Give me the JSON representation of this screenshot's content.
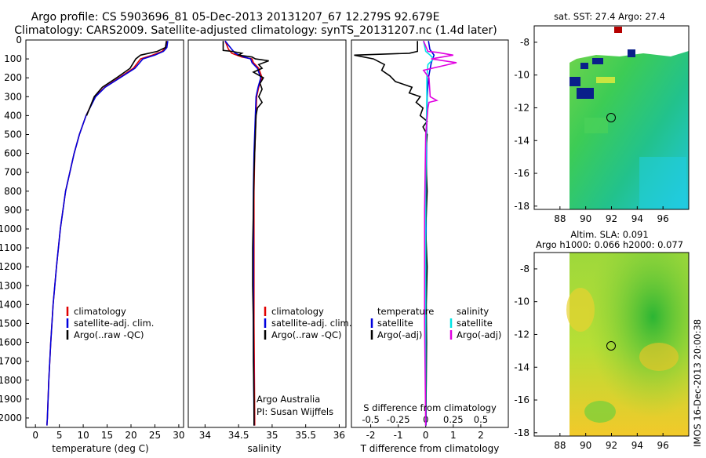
{
  "header": {
    "title_line1": "Argo profile: CS 5903696_81 05-Dec-2013 20131207_67 12.279S 92.679E",
    "title_line2": "Climatology: CARS2009. Satellite-adjusted climatology: synTS_20131207.nc (1.4d later)"
  },
  "colors": {
    "climatology": "#e00000",
    "satellite": "#0000dd",
    "argo": "#000000",
    "sat_salinity": "#00e5e5",
    "argo_salinity": "#e000e0"
  },
  "depth_axis": {
    "ylim": [
      2050,
      0
    ],
    "ticks": [
      "0",
      "100",
      "200",
      "300",
      "400",
      "500",
      "600",
      "700",
      "800",
      "900",
      "1000",
      "1100",
      "1200",
      "1300",
      "1400",
      "1500",
      "1600",
      "1700",
      "1800",
      "1900",
      "2000"
    ]
  },
  "chart_data": [
    {
      "type": "line",
      "id": "temperature",
      "xlabel": "temperature (deg C)",
      "xlim": [
        -2,
        31
      ],
      "xticks": [
        "0",
        "5",
        "10",
        "15",
        "20",
        "25",
        "30"
      ],
      "legend": [
        "climatology",
        "satellite-adj. clim.",
        "Argo(..raw -QC)"
      ],
      "series": [
        {
          "name": "climatology",
          "depth": [
            5,
            40,
            60,
            80,
            100,
            150,
            200,
            250,
            300,
            400,
            500,
            600,
            800,
            1000,
            1200,
            1400,
            1600,
            1800,
            2000,
            2040
          ],
          "values": [
            27.5,
            27.3,
            26.5,
            24.5,
            22,
            20.5,
            17.5,
            14.5,
            12.5,
            10.6,
            9.2,
            8.1,
            6.3,
            5.2,
            4.4,
            3.7,
            3.2,
            2.8,
            2.5,
            2.4
          ]
        },
        {
          "name": "satellite-adj. clim.",
          "depth": [
            5,
            40,
            60,
            80,
            100,
            150,
            200,
            250,
            300,
            400,
            500,
            600,
            800,
            1000,
            1200,
            1400,
            1600,
            1800,
            2000,
            2040
          ],
          "values": [
            27.7,
            27.5,
            26.8,
            25,
            22.5,
            20.8,
            17.7,
            14.6,
            12.6,
            10.6,
            9.2,
            8.1,
            6.3,
            5.2,
            4.4,
            3.7,
            3.2,
            2.8,
            2.5,
            2.4
          ]
        },
        {
          "name": "Argo(..raw -QC)",
          "depth": [
            5,
            40,
            60,
            80,
            100,
            150,
            200,
            250,
            300,
            400
          ],
          "values": [
            27.4,
            27.2,
            25.5,
            22,
            21,
            19.8,
            17,
            14,
            12.3,
            10.7
          ]
        }
      ]
    },
    {
      "type": "line",
      "id": "salinity",
      "xlabel": "salinity",
      "xlim": [
        33.75,
        36.1
      ],
      "xticks": [
        "34",
        "34.5",
        "35",
        "35.5",
        "36"
      ],
      "legend": [
        "climatology",
        "satellite-adj. clim.",
        "Argo(..raw -QC)"
      ],
      "annotation": [
        "Argo Australia",
        "PI: Susan Wijffels"
      ],
      "series": [
        {
          "name": "climatology",
          "depth": [
            5,
            50,
            70,
            90,
            100,
            120,
            150,
            200,
            250,
            300,
            400,
            600,
            800,
            1000,
            1500,
            2000,
            2040
          ],
          "values": [
            34.3,
            34.35,
            34.4,
            34.55,
            34.7,
            34.72,
            34.8,
            34.85,
            34.8,
            34.77,
            34.76,
            34.74,
            34.73,
            34.73,
            34.73,
            34.74,
            34.74
          ]
        },
        {
          "name": "satellite-adj. clim.",
          "depth": [
            5,
            50,
            70,
            90,
            100,
            120,
            150,
            200,
            250,
            300,
            400,
            600,
            800,
            1000,
            1500,
            2000,
            2040
          ],
          "values": [
            34.3,
            34.4,
            34.45,
            34.58,
            34.68,
            34.7,
            34.78,
            34.83,
            34.79,
            34.76,
            34.75,
            34.73,
            34.72,
            34.72,
            34.72,
            34.73,
            34.73
          ]
        },
        {
          "name": "Argo(..raw -QC)",
          "depth": [
            5,
            55,
            60,
            70,
            80,
            90,
            100,
            110,
            130,
            150,
            170,
            200,
            230,
            260,
            300,
            330,
            360,
            400,
            500,
            700,
            900,
            1100,
            1300,
            1500,
            1700,
            1900,
            2040
          ],
          "values": [
            34.27,
            34.27,
            34.4,
            34.55,
            34.5,
            34.7,
            34.75,
            34.95,
            34.8,
            34.85,
            34.72,
            34.87,
            34.82,
            34.85,
            34.8,
            34.85,
            34.78,
            34.76,
            34.75,
            34.73,
            34.72,
            34.71,
            34.71,
            34.72,
            34.72,
            34.73,
            34.73
          ]
        }
      ]
    },
    {
      "type": "line",
      "id": "difference",
      "xlabel": "T difference from climatology",
      "xlabel_top": "S difference from climatology",
      "xlim": [
        -2.7,
        3
      ],
      "xticks_bottom": [
        "-2",
        "-1",
        "0",
        "1",
        "2"
      ],
      "xticks_top": [
        "-0.5",
        "-0.25",
        "0",
        "0.25",
        "0.5"
      ],
      "legend_left": [
        "temperature",
        "satellite",
        "Argo(-adj)"
      ],
      "legend_right": [
        "salinity",
        "satellite",
        "Argo(-adj)"
      ],
      "series": [
        {
          "name": "T satellite",
          "depth": [
            5,
            50,
            80,
            120,
            200,
            300,
            500,
            800,
            1200,
            1600,
            2040
          ],
          "values": [
            0.1,
            0.15,
            0.3,
            0.2,
            0.1,
            0.05,
            0.03,
            0.02,
            0.01,
            0.01,
            0.01
          ]
        },
        {
          "name": "T Argo(-adj)",
          "depth": [
            5,
            60,
            70,
            80,
            100,
            130,
            160,
            190,
            220,
            250,
            280,
            300,
            330,
            360,
            400,
            430,
            460,
            500,
            600,
            800,
            1000,
            1200,
            1400,
            1600,
            1800,
            2040
          ],
          "values": [
            -0.3,
            -0.3,
            -0.6,
            -2.6,
            -1.9,
            -1.5,
            -1.6,
            -1.3,
            -1.1,
            -0.5,
            -0.6,
            -0.2,
            -0.35,
            -0.1,
            -0.2,
            0.05,
            -0.1,
            0.05,
            0.0,
            0.05,
            0.0,
            0.05,
            0.02,
            0.03,
            0.02,
            0.0
          ]
        },
        {
          "name": "S satellite",
          "depth": [
            5,
            60,
            80,
            100,
            130,
            200,
            300,
            500,
            800,
            1200,
            1600,
            2040
          ],
          "values": [
            -0.02,
            0.0,
            0.04,
            0.07,
            0.02,
            0.01,
            0.01,
            0.005,
            0.0,
            0.0,
            0.0,
            0.0
          ]
        },
        {
          "name": "S Argo(-adj)",
          "depth": [
            5,
            60,
            65,
            80,
            100,
            120,
            160,
            200,
            300,
            320,
            330,
            360,
            500,
            900,
            1500,
            2040
          ],
          "values": [
            -0.02,
            0.02,
            0.1,
            0.25,
            0.05,
            0.28,
            -0.02,
            0.03,
            0.04,
            0.1,
            0.03,
            0.02,
            0.0,
            -0.01,
            -0.01,
            0.0
          ]
        }
      ]
    }
  ],
  "map_top": {
    "title": "sat. SST: 27.4  Argo: 27.4",
    "lat_ticks": [
      "-8",
      "-10",
      "-12",
      "-14",
      "-16",
      "-18"
    ],
    "lon_ticks": [
      "88",
      "90",
      "92",
      "94",
      "96"
    ]
  },
  "map_bottom": {
    "title_line1": "Altim. SLA: 0.091",
    "title_line2": "Argo h1000: 0.066 h2000: 0.077",
    "lat_ticks": [
      "-8",
      "-10",
      "-12",
      "-14",
      "-16",
      "-18"
    ],
    "lon_ticks": [
      "88",
      "90",
      "92",
      "94",
      "96"
    ]
  },
  "footer": {
    "stamp": "IMOS 16-Dec-2013 20:00:38"
  }
}
